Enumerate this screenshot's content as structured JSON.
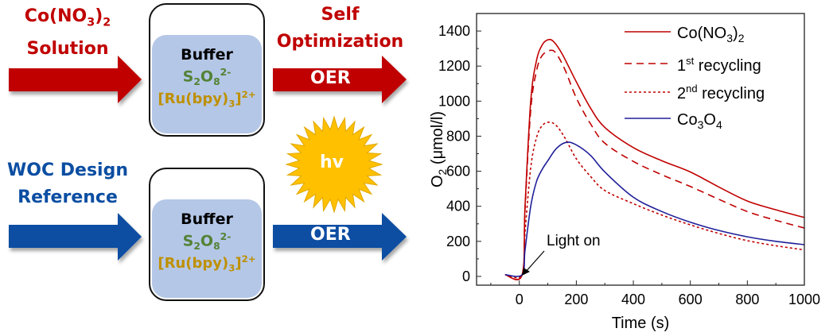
{
  "diagram": {
    "top_input": {
      "line1_main": "Co(NO",
      "line1_sub": "3",
      "line1_close": ")",
      "line1_sub2": "2",
      "line2": "Solution"
    },
    "bottom_input": {
      "line1": "WOC Design",
      "line2": "Reference"
    },
    "box": {
      "buffer": "Buffer",
      "persulfate": {
        "s": "S",
        "s_sub": "2",
        "o": "O",
        "o_sub": "8",
        "charge": "2-"
      },
      "ru": {
        "main": "[Ru(bpy)",
        "sub": "3",
        "close": "]",
        "charge": "2+"
      }
    },
    "top_output": {
      "line1": "Self",
      "line2": "Optimization",
      "arrow_label": "OER"
    },
    "bottom_output": {
      "arrow_label": "OER"
    },
    "sun_label": "hv",
    "colors": {
      "red": "#c00000",
      "blue": "#0b4ea2",
      "green": "#548235",
      "gold": "#bf9000",
      "box_fill": "#b4c7e7",
      "sun": "#ffc000"
    }
  },
  "chart_data": {
    "type": "line",
    "xlabel": "Time (s)",
    "ylabel": {
      "main": "O",
      "sub": "2",
      "rest": " (μmol/l)"
    },
    "xlim": [
      -150,
      1000
    ],
    "ylim": [
      -50,
      1500
    ],
    "xticks": [
      0,
      200,
      400,
      600,
      800,
      1000
    ],
    "yticks": [
      0,
      200,
      400,
      600,
      800,
      1000,
      1200,
      1400
    ],
    "grid": false,
    "legend_position": "top-right",
    "annotation": "Light on",
    "series": [
      {
        "name": "Co(NO3)2",
        "legend": {
          "main": "Co(NO",
          "sub": "3",
          "close": ")",
          "sub2": "2"
        },
        "color": "#c00000",
        "dash": "solid",
        "x": [
          -50,
          10,
          20,
          40,
          60,
          80,
          100,
          120,
          150,
          200,
          250,
          300,
          400,
          500,
          600,
          700,
          800,
          900,
          1000
        ],
        "y": [
          10,
          10,
          400,
          1000,
          1230,
          1320,
          1350,
          1340,
          1270,
          1110,
          960,
          850,
          735,
          660,
          596,
          510,
          430,
          380,
          336
        ]
      },
      {
        "name": "1st recycling",
        "legend": {
          "pre": "1",
          "sup": "st",
          "post": " recycling"
        },
        "color": "#c00000",
        "dash": "dashed",
        "x": [
          -50,
          10,
          20,
          40,
          60,
          80,
          110,
          130,
          160,
          200,
          250,
          300,
          400,
          500,
          600,
          700,
          800,
          900,
          1000
        ],
        "y": [
          10,
          10,
          380,
          950,
          1170,
          1260,
          1290,
          1270,
          1180,
          1018,
          870,
          760,
          656,
          580,
          513,
          440,
          370,
          320,
          276
        ]
      },
      {
        "name": "2nd recycling",
        "legend": {
          "pre": "2",
          "sup": "nd",
          "post": " recycling"
        },
        "color": "#c00000",
        "dash": "dotted",
        "x": [
          -50,
          10,
          20,
          40,
          60,
          80,
          105,
          130,
          160,
          200,
          250,
          300,
          400,
          500,
          600,
          700,
          800,
          900,
          1000
        ],
        "y": [
          10,
          10,
          250,
          620,
          790,
          860,
          880,
          860,
          790,
          671,
          570,
          490,
          415,
          350,
          294,
          245,
          204,
          175,
          151
        ]
      },
      {
        "name": "Co3O4",
        "legend": {
          "a": "Co",
          "a_sub": "3",
          "b": "O",
          "b_sub": "4"
        },
        "color": "#1f1f9a",
        "dash": "solid",
        "x": [
          -50,
          10,
          20,
          40,
          60,
          80,
          100,
          130,
          165,
          200,
          250,
          300,
          400,
          500,
          600,
          700,
          800,
          900,
          1000
        ],
        "y": [
          10,
          10,
          150,
          400,
          540,
          610,
          660,
          730,
          765,
          750,
          690,
          596,
          452,
          370,
          309,
          262,
          226,
          200,
          181
        ]
      }
    ]
  }
}
